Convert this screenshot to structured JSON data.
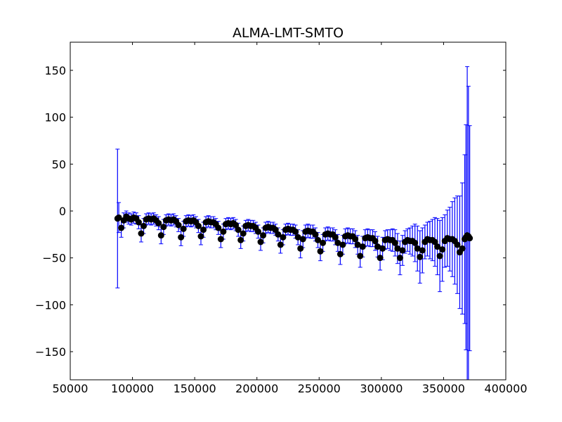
{
  "chart_data": {
    "type": "scatter",
    "title": "ALMA-LMT-SMTO",
    "xlabel": "",
    "ylabel": "",
    "xlim": [
      50000,
      400000
    ],
    "ylim": [
      -180,
      180
    ],
    "xticks": [
      50000,
      100000,
      150000,
      200000,
      250000,
      300000,
      350000,
      400000
    ],
    "xtick_labels": [
      "50000",
      "100000",
      "150000",
      "200000",
      "250000",
      "300000",
      "350000",
      "400000"
    ],
    "yticks": [
      150,
      100,
      50,
      0,
      -50,
      -100,
      -150
    ],
    "ytick_labels": [
      "150",
      "100",
      "50",
      "0",
      "−50",
      "−100",
      "−150"
    ],
    "grid": false,
    "marker_color": "#000000",
    "errorbar_color": "#0000ff",
    "series": [
      {
        "x": [
          88000,
          89000,
          91000,
          93000,
          95000,
          97000,
          99000,
          101000,
          103000,
          105000,
          107000,
          109000,
          111000,
          113000,
          115000,
          117000,
          119000,
          121000,
          123000,
          125000,
          127000,
          129000,
          131000,
          133000,
          135000,
          137000,
          139000,
          141000,
          143000,
          145000,
          147000,
          149000,
          151000,
          153000,
          155000,
          157000,
          159000,
          161000,
          163000,
          165000,
          167000,
          169000,
          171000,
          173000,
          175000,
          177000,
          179000,
          181000,
          183000,
          185000,
          187000,
          189000,
          191000,
          193000,
          195000,
          197000,
          199000,
          201000,
          203000,
          205000,
          207000,
          209000,
          211000,
          213000,
          215000,
          217000,
          219000,
          221000,
          223000,
          225000,
          227000,
          229000,
          231000,
          233000,
          235000,
          237000,
          239000,
          241000,
          243000,
          245000,
          247000,
          249000,
          251000,
          253000,
          255000,
          257000,
          259000,
          261000,
          263000,
          265000,
          267000,
          269000,
          271000,
          273000,
          275000,
          277000,
          279000,
          281000,
          283000,
          285000,
          287000,
          289000,
          291000,
          293000,
          295000,
          297000,
          299000,
          301000,
          303000,
          305000,
          307000,
          309000,
          311000,
          313000,
          315000,
          317000,
          319000,
          321000,
          323000,
          325000,
          327000,
          329000,
          331000,
          333000,
          335000,
          337000,
          339000,
          341000,
          343000,
          345000,
          347000,
          349000,
          351000,
          353000,
          355000,
          357000,
          359000,
          361000,
          363000,
          365000,
          367000,
          368000,
          369000,
          370000,
          371000
        ],
        "y": [
          -8,
          -7,
          -18,
          -10,
          -6,
          -8,
          -9,
          -7,
          -8,
          -12,
          -24,
          -16,
          -9,
          -8,
          -9,
          -8,
          -10,
          -13,
          -26,
          -17,
          -10,
          -9,
          -10,
          -9,
          -11,
          -15,
          -28,
          -19,
          -11,
          -10,
          -11,
          -10,
          -12,
          -16,
          -27,
          -20,
          -12,
          -11,
          -12,
          -12,
          -14,
          -18,
          -30,
          -22,
          -14,
          -13,
          -14,
          -13,
          -15,
          -20,
          -31,
          -24,
          -16,
          -15,
          -16,
          -16,
          -18,
          -22,
          -33,
          -26,
          -18,
          -17,
          -18,
          -18,
          -20,
          -25,
          -36,
          -28,
          -20,
          -19,
          -20,
          -20,
          -22,
          -28,
          -40,
          -30,
          -22,
          -21,
          -22,
          -22,
          -25,
          -31,
          -43,
          -34,
          -25,
          -24,
          -25,
          -25,
          -28,
          -34,
          -46,
          -36,
          -27,
          -26,
          -27,
          -27,
          -30,
          -36,
          -48,
          -38,
          -29,
          -28,
          -29,
          -29,
          -32,
          -38,
          -50,
          -40,
          -31,
          -30,
          -31,
          -31,
          -34,
          -40,
          -50,
          -42,
          -33,
          -31,
          -32,
          -32,
          -34,
          -40,
          -49,
          -42,
          -33,
          -30,
          -31,
          -31,
          -33,
          -38,
          -48,
          -41,
          -32,
          -29,
          -30,
          -30,
          -32,
          -36,
          -44,
          -40,
          -30,
          -28,
          -26,
          -27,
          -29
        ],
        "err": [
          74,
          16,
          10,
          8,
          6,
          6,
          6,
          6,
          6,
          7,
          9,
          8,
          6,
          6,
          6,
          6,
          6,
          7,
          9,
          8,
          6,
          6,
          6,
          6,
          6,
          7,
          9,
          8,
          6,
          6,
          6,
          6,
          6,
          7,
          9,
          8,
          6,
          6,
          6,
          6,
          6,
          7,
          9,
          8,
          6,
          6,
          6,
          6,
          6,
          7,
          9,
          8,
          6,
          6,
          6,
          6,
          6,
          7,
          9,
          8,
          6,
          6,
          6,
          6,
          6,
          7,
          9,
          8,
          6,
          6,
          6,
          6,
          7,
          8,
          10,
          9,
          7,
          7,
          7,
          7,
          7,
          8,
          10,
          9,
          7,
          7,
          7,
          7,
          8,
          9,
          11,
          10,
          8,
          8,
          8,
          8,
          9,
          10,
          12,
          11,
          9,
          9,
          9,
          9,
          10,
          11,
          13,
          12,
          10,
          10,
          11,
          12,
          14,
          16,
          18,
          16,
          12,
          12,
          14,
          16,
          20,
          24,
          28,
          24,
          18,
          18,
          20,
          22,
          26,
          30,
          38,
          34,
          28,
          30,
          34,
          40,
          46,
          52,
          60,
          70,
          90,
          120,
          180,
          160,
          120
        ]
      }
    ]
  }
}
